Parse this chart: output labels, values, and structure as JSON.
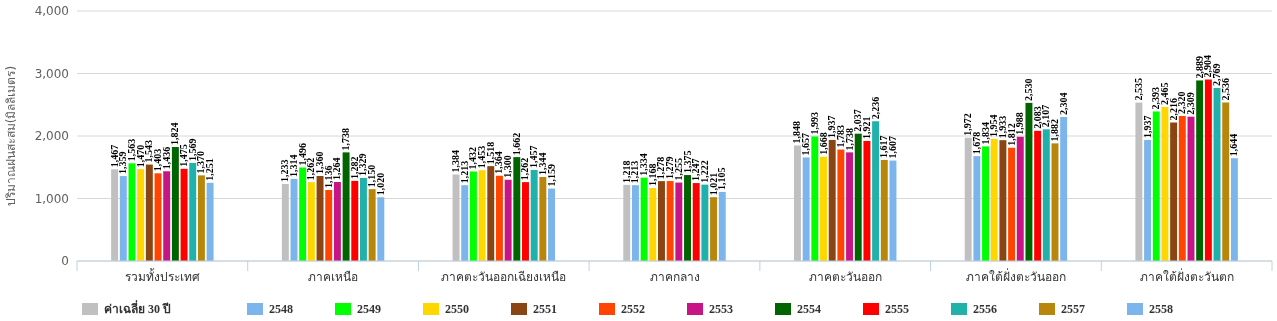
{
  "chart_data": {
    "type": "bar",
    "ylabel": "ปริมาณฝนสะสม(มิลลิเมตร)",
    "categories": [
      "รวมทั้งประเทศ",
      "ภาคเหนือ",
      "ภาคตะวันออกเฉียงเหนือ",
      "ภาคกลาง",
      "ภาคตะวันออก",
      "ภาคใต้ฝั่งตะวันออก",
      "ภาคใต้ฝั่งตะวันตก"
    ],
    "series": [
      {
        "name": "ค่าเฉลี่ย 30 ปี",
        "color": "#c0c0c0",
        "values": [
          1467,
          1233,
          1384,
          1218,
          1848,
          1972,
          2535
        ],
        "value_labels": [
          "1,467",
          "1,233",
          "1,384",
          "1,218",
          "1,848",
          "1,972",
          "2,535"
        ]
      },
      {
        "name": "2548",
        "color": "#7cb5ec",
        "values": [
          1359,
          1314,
          1213,
          1213,
          1657,
          1678,
          1937
        ],
        "value_labels": [
          "1,359",
          "1,314",
          "1,213",
          "1,213",
          "1,657",
          "1,678",
          "1,937"
        ]
      },
      {
        "name": "2549",
        "color": "#00ff00",
        "values": [
          1563,
          1496,
          1432,
          1334,
          1993,
          1834,
          2393
        ],
        "value_labels": [
          "1,563",
          "1,496",
          "1,432",
          "1,334",
          "1,993",
          "1,834",
          "2,393"
        ]
      },
      {
        "name": "2550",
        "color": "#ffd700",
        "values": [
          1470,
          1262,
          1453,
          1168,
          1668,
          1954,
          2465
        ],
        "value_labels": [
          "1,470",
          "1,262",
          "1,453",
          "1,168",
          "1,668",
          "1,954",
          "2,465"
        ]
      },
      {
        "name": "2551",
        "color": "#8b4513",
        "values": [
          1543,
          1360,
          1518,
          1278,
          1937,
          1933,
          2216
        ],
        "value_labels": [
          "1,543",
          "1,360",
          "1,518",
          "1,278",
          "1,937",
          "1,933",
          "2,216"
        ]
      },
      {
        "name": "2552",
        "color": "#ff4500",
        "values": [
          1403,
          1136,
          1364,
          1279,
          1783,
          1812,
          2320
        ],
        "value_labels": [
          "1,403",
          "1,136",
          "1,364",
          "1,279",
          "1,783",
          "1,812",
          "2,320"
        ]
      },
      {
        "name": "2553",
        "color": "#c71585",
        "values": [
          1436,
          1264,
          1300,
          1255,
          1738,
          1988,
          2309
        ],
        "value_labels": [
          "1,436",
          "1,264",
          "1,300",
          "1,255",
          "1,738",
          "1,988",
          "2,309"
        ]
      },
      {
        "name": "2554",
        "color": "#006400",
        "values": [
          1824,
          1738,
          1662,
          1375,
          2037,
          2530,
          2889
        ],
        "value_labels": [
          "1,824",
          "1,738",
          "1,662",
          "1,375",
          "2,037",
          "2,530",
          "2,889"
        ]
      },
      {
        "name": "2555",
        "color": "#ff0000",
        "values": [
          1475,
          1282,
          1262,
          1247,
          1921,
          2083,
          2904
        ],
        "value_labels": [
          "1,475",
          "1,282",
          "1,262",
          "1,247",
          "1,921",
          "2,083",
          "2,904"
        ]
      },
      {
        "name": "2556",
        "color": "#20b2aa",
        "values": [
          1569,
          1329,
          1457,
          1222,
          2236,
          2107,
          2769
        ],
        "value_labels": [
          "1,569",
          "1,329",
          "1,457",
          "1,222",
          "2,236",
          "2,107",
          "2,769"
        ]
      },
      {
        "name": "2557",
        "color": "#b8860b",
        "values": [
          1370,
          1150,
          1344,
          1021,
          1617,
          1882,
          2536
        ],
        "value_labels": [
          "1,370",
          "1,150",
          "1,344",
          "1,021",
          "1,617",
          "1,882",
          "2,536"
        ]
      },
      {
        "name": "2558",
        "color": "#7cb5ec",
        "values": [
          1251,
          1020,
          1159,
          1105,
          1607,
          2304,
          1644
        ],
        "value_labels": [
          "1,251",
          "1,020",
          "1,159",
          "1,105",
          "1,607",
          "2,304",
          "1,644"
        ]
      }
    ],
    "ylim": [
      0,
      4000
    ],
    "yticks": [
      {
        "value": 0,
        "label": "0"
      },
      {
        "value": 1000,
        "label": "1,000"
      },
      {
        "value": 2000,
        "label": "2,000"
      },
      {
        "value": 3000,
        "label": "3,000"
      },
      {
        "value": 4000,
        "label": "4,000"
      }
    ],
    "grid": "y",
    "legend": "bottom"
  }
}
